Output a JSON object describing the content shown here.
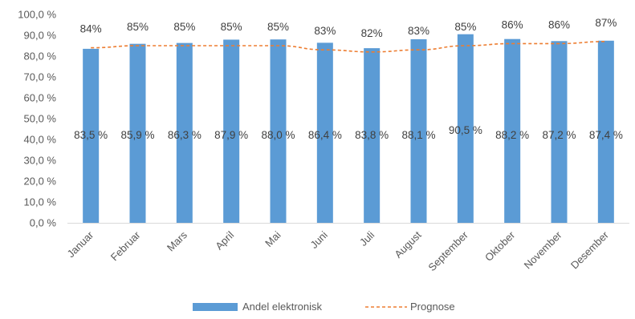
{
  "chart_data": {
    "type": "bar",
    "title": "",
    "xlabel": "",
    "ylabel": "",
    "ylim": [
      0,
      100
    ],
    "ytick_step": 10,
    "ytick_labels": [
      "0,0 %",
      "10,0 %",
      "20,0 %",
      "30,0 %",
      "40,0 %",
      "50,0 %",
      "60,0 %",
      "70,0 %",
      "80,0 %",
      "90,0 %",
      "100,0 %"
    ],
    "categories": [
      "Januar",
      "Februar",
      "Mars",
      "April",
      "Mai",
      "Juni",
      "Juli",
      "August",
      "September",
      "Oktober",
      "November",
      "Desember"
    ],
    "series": [
      {
        "name": "Andel elektronisk",
        "kind": "bar",
        "color": "#5B9BD5",
        "values": [
          83.5,
          85.9,
          86.3,
          87.9,
          88.0,
          86.4,
          83.8,
          88.1,
          90.5,
          88.2,
          87.2,
          87.4
        ],
        "labels": [
          "83,5 %",
          "85,9 %",
          "86,3 %",
          "87,9 %",
          "88,0 %",
          "86,4 %",
          "83,8 %",
          "88,1 %",
          "90,5 %",
          "88,2 %",
          "87,2 %",
          "87,4 %"
        ]
      },
      {
        "name": "Prognose",
        "kind": "line",
        "style": "dashed",
        "color": "#ED7D31",
        "values": [
          84,
          85,
          85,
          85,
          85,
          83,
          82,
          83,
          85,
          86,
          86,
          87
        ],
        "labels": [
          "84%",
          "85%",
          "85%",
          "85%",
          "85%",
          "83%",
          "82%",
          "83%",
          "85%",
          "86%",
          "86%",
          "87%"
        ]
      }
    ],
    "grid": false,
    "legend_position": "bottom"
  }
}
